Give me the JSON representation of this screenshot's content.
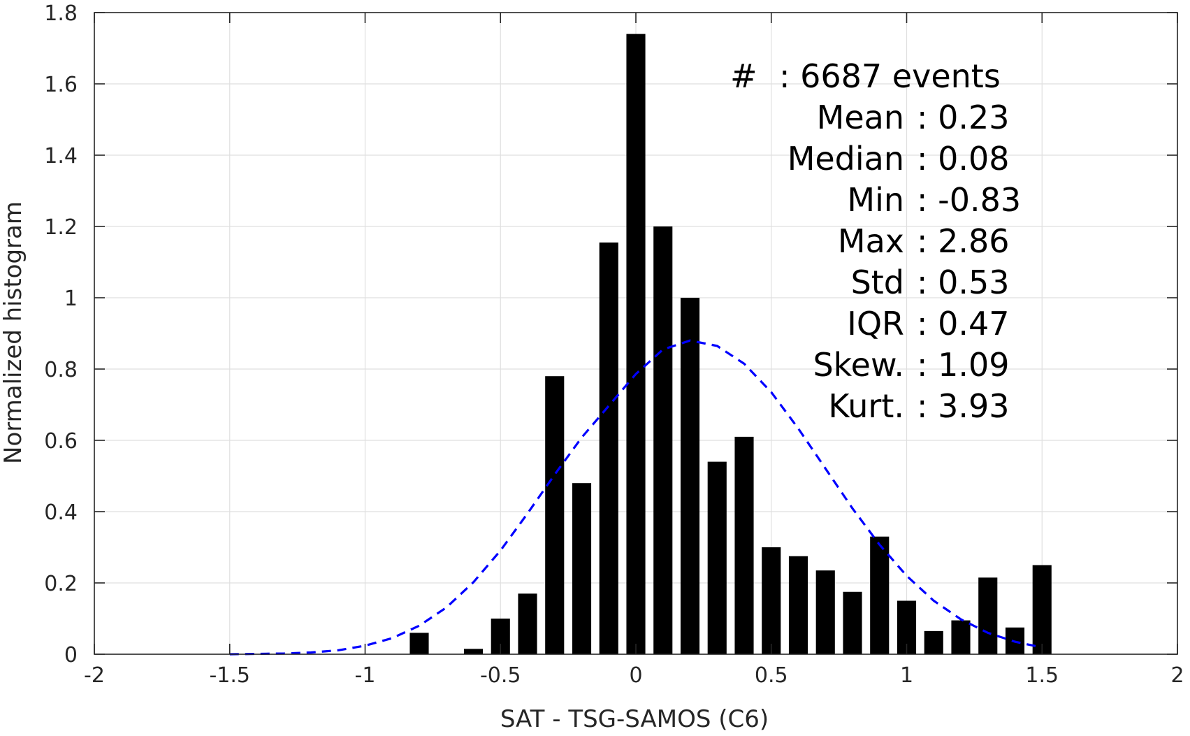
{
  "chart_data": {
    "type": "bar",
    "xlabel": "SAT - TSG-SAMOS (C6)",
    "ylabel": "Normalized histogram",
    "xlim": [
      -2,
      2
    ],
    "ylim": [
      0,
      1.8
    ],
    "xticks": [
      -2,
      -1.5,
      -1,
      -0.5,
      0,
      0.5,
      1,
      1.5,
      2
    ],
    "xtick_labels": [
      "-2",
      "-1.5",
      "-1",
      "-0.5",
      "0",
      "0.5",
      "1",
      "1.5",
      "2"
    ],
    "yticks": [
      0,
      0.2,
      0.4,
      0.6,
      0.8,
      1,
      1.2,
      1.4,
      1.6,
      1.8
    ],
    "ytick_labels": [
      "0",
      "0.2",
      "0.4",
      "0.6",
      "0.8",
      "1",
      "1.2",
      "1.4",
      "1.6",
      "1.8"
    ],
    "grid": true,
    "bar_color": "#000000",
    "bin_width": 0.1,
    "bars": [
      {
        "x": -0.8,
        "y": 0.06
      },
      {
        "x": -0.6,
        "y": 0.015
      },
      {
        "x": -0.5,
        "y": 0.1
      },
      {
        "x": -0.4,
        "y": 0.17
      },
      {
        "x": -0.3,
        "y": 0.78
      },
      {
        "x": -0.2,
        "y": 0.48
      },
      {
        "x": -0.1,
        "y": 1.155
      },
      {
        "x": 0.0,
        "y": 1.74
      },
      {
        "x": 0.1,
        "y": 1.2
      },
      {
        "x": 0.2,
        "y": 1.0
      },
      {
        "x": 0.3,
        "y": 0.54
      },
      {
        "x": 0.4,
        "y": 0.61
      },
      {
        "x": 0.5,
        "y": 0.3
      },
      {
        "x": 0.6,
        "y": 0.275
      },
      {
        "x": 0.7,
        "y": 0.235
      },
      {
        "x": 0.8,
        "y": 0.175
      },
      {
        "x": 0.9,
        "y": 0.33
      },
      {
        "x": 1.0,
        "y": 0.15
      },
      {
        "x": 1.1,
        "y": 0.065
      },
      {
        "x": 1.2,
        "y": 0.095
      },
      {
        "x": 1.3,
        "y": 0.215
      },
      {
        "x": 1.4,
        "y": 0.075
      },
      {
        "x": 1.5,
        "y": 0.25
      }
    ],
    "fit_curve": {
      "style": "dashed",
      "color": "#0000ff",
      "x": [
        -1.5,
        -1.4,
        -1.3,
        -1.2,
        -1.1,
        -1.0,
        -0.9,
        -0.8,
        -0.7,
        -0.6,
        -0.5,
        -0.4,
        -0.3,
        -0.2,
        -0.1,
        0.0,
        0.1,
        0.2,
        0.3,
        0.4,
        0.5,
        0.6,
        0.7,
        0.8,
        0.9,
        1.0,
        1.1,
        1.2,
        1.3,
        1.4,
        1.5
      ],
      "y": [
        0.0,
        0.001,
        0.002,
        0.005,
        0.011,
        0.024,
        0.045,
        0.08,
        0.131,
        0.202,
        0.291,
        0.395,
        0.504,
        0.608,
        0.697,
        0.786,
        0.855,
        0.88,
        0.865,
        0.815,
        0.735,
        0.633,
        0.521,
        0.409,
        0.307,
        0.22,
        0.15,
        0.098,
        0.06,
        0.035,
        0.019
      ]
    },
    "annotations": [
      {
        "label": "#",
        "sep": ":",
        "value": "6687 events"
      },
      {
        "label": "Mean",
        "sep": ":",
        "value": "0.23"
      },
      {
        "label": "Median",
        "sep": ":",
        "value": "0.08"
      },
      {
        "label": "Min",
        "sep": ":",
        "value": "-0.83"
      },
      {
        "label": "Max",
        "sep": ":",
        "value": "2.86"
      },
      {
        "label": "Std",
        "sep": ":",
        "value": "0.53"
      },
      {
        "label": "IQR",
        "sep": ":",
        "value": "0.47"
      },
      {
        "label": "Skew.",
        "sep": ":",
        "value": "1.09"
      },
      {
        "label": "Kurt.",
        "sep": ":",
        "value": "3.93"
      }
    ]
  }
}
